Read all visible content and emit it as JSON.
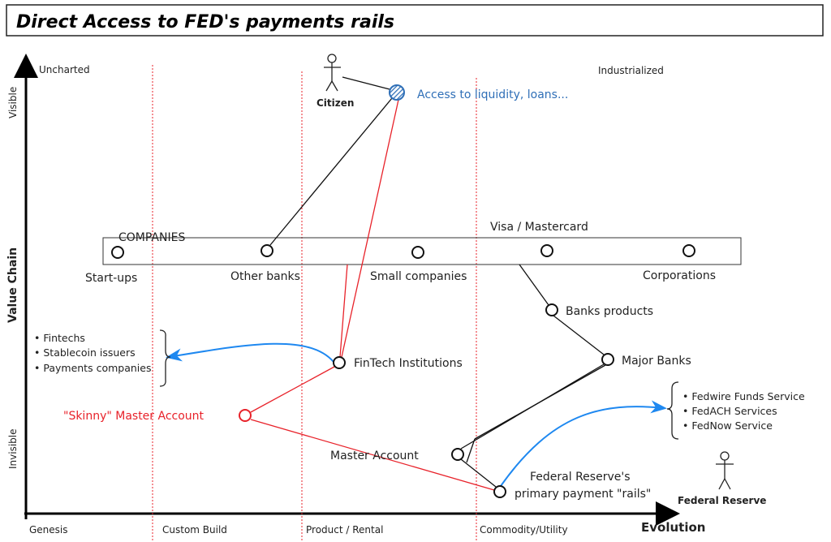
{
  "title": "Direct Access to FED's payments rails",
  "axes": {
    "y_label": "Value Chain",
    "y_top": "Visible",
    "y_bottom": "Invisible",
    "x_label": "Evolution",
    "stages": [
      "Genesis",
      "Custom Build",
      "Product / Rental",
      "Commodity/Utility"
    ],
    "corner_top_left": "Uncharted",
    "corner_top_right": "Industrialized"
  },
  "actors": {
    "citizen": "Citizen",
    "federal_reserve": "Federal Reserve"
  },
  "group": {
    "label": "COMPANIES",
    "members": [
      "Start-ups",
      "Other banks",
      "Small companies",
      "Visa / Mastercard",
      "Corporations"
    ]
  },
  "nodes": {
    "access": "Access to liquidity, loans...",
    "banks_products": "Banks products",
    "major_banks": "Major Banks",
    "fintech": "FinTech Institutions",
    "skinny": "\"Skinny\" Master Account",
    "master": "Master Account",
    "rails_line1": "Federal Reserve's",
    "rails_line2": "primary payment \"rails\""
  },
  "fintech_list": [
    "Fintechs",
    "Stablecoin issuers",
    "Payments companies"
  ],
  "fed_list": [
    "Fedwire Funds Service",
    "FedACH Services",
    "FedNow Service"
  ],
  "colors": {
    "red": "#e8222a",
    "blue": "#1e88f0",
    "access_blue": "#2f6fb7",
    "black": "#111111"
  }
}
